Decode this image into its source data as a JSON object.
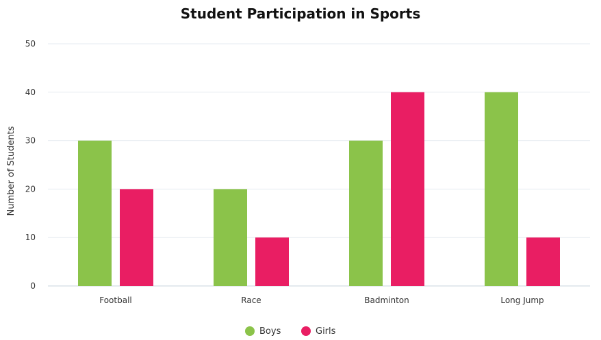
{
  "chart_data": {
    "type": "bar",
    "title": "Student Participation in Sports",
    "xlabel": "",
    "ylabel": "Number of Students",
    "categories": [
      "Football",
      "Race",
      "Badminton",
      "Long Jump"
    ],
    "series": [
      {
        "name": "Boys",
        "values": [
          30,
          20,
          30,
          40
        ],
        "color": "#8bc34a"
      },
      {
        "name": "Girls",
        "values": [
          20,
          10,
          40,
          10
        ],
        "color": "#e91e63"
      }
    ],
    "ylim": [
      0,
      50
    ],
    "yticks": [
      0,
      10,
      20,
      30,
      40,
      50
    ],
    "grid": true,
    "legend": "bottom-center"
  }
}
